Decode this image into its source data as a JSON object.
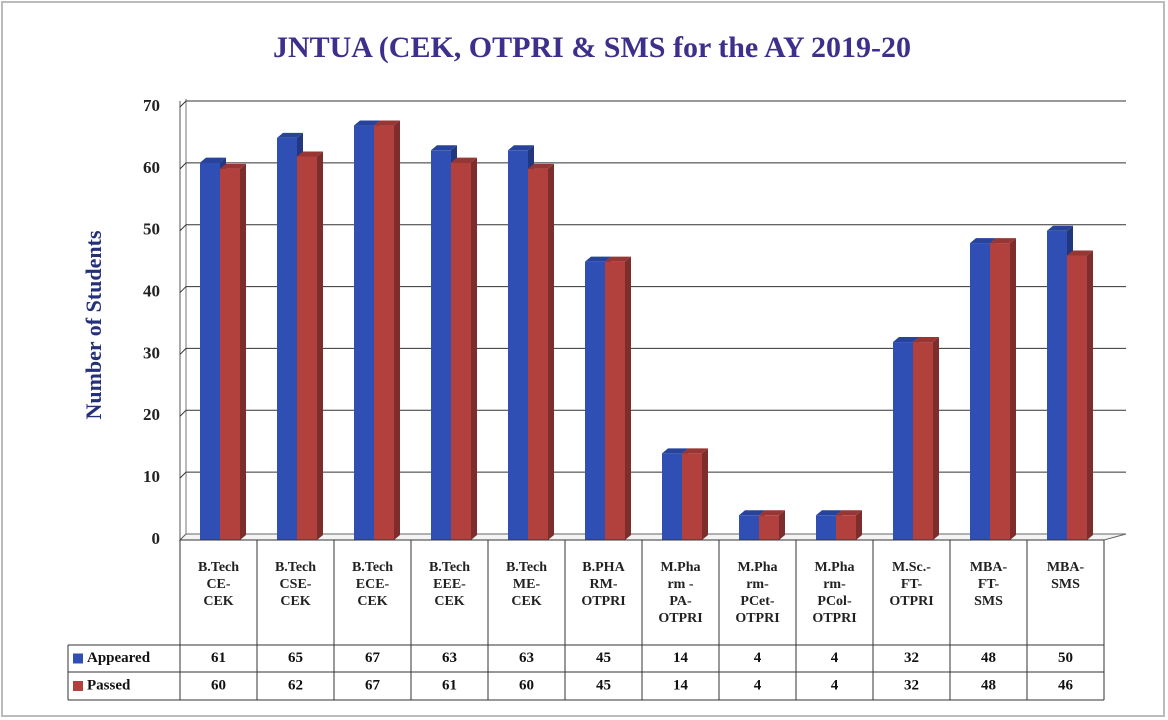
{
  "chart_data": {
    "type": "bar",
    "title": "JNTUA (CEK, OTPRI & SMS for the AY 2019-20",
    "y_label": "Number of Students",
    "categories": [
      [
        "B.Tech",
        "CE-",
        "CEK"
      ],
      [
        "B.Tech",
        "CSE-",
        "CEK"
      ],
      [
        "B.Tech",
        "ECE-",
        "CEK"
      ],
      [
        "B.Tech",
        "EEE-",
        "CEK"
      ],
      [
        "B.Tech",
        "ME-",
        "CEK"
      ],
      [
        "B.PHA",
        "RM-",
        "OTPRI"
      ],
      [
        "M.Pha",
        "rm -",
        "PA-",
        "OTPRI"
      ],
      [
        "M.Pha",
        "rm-",
        "PCet-",
        "OTPRI"
      ],
      [
        "M.Pha",
        "rm-",
        "PCol-",
        "OTPRI"
      ],
      [
        "M.Sc.-",
        "FT-",
        "OTPRI"
      ],
      [
        "MBA-",
        "FT-",
        "SMS"
      ],
      [
        "MBA-",
        "SMS"
      ]
    ],
    "series": [
      {
        "name": "Appeared",
        "color": "#2f4fb5",
        "values": [
          61,
          65,
          67,
          63,
          63,
          45,
          14,
          4,
          4,
          32,
          48,
          50
        ]
      },
      {
        "name": "Passed",
        "color": "#b2403d",
        "values": [
          60,
          62,
          67,
          61,
          60,
          45,
          14,
          4,
          4,
          32,
          48,
          46
        ]
      }
    ],
    "ylim": [
      0,
      70
    ],
    "yticks": [
      0,
      10,
      20,
      30,
      40,
      50,
      60,
      70
    ],
    "grid": true
  }
}
